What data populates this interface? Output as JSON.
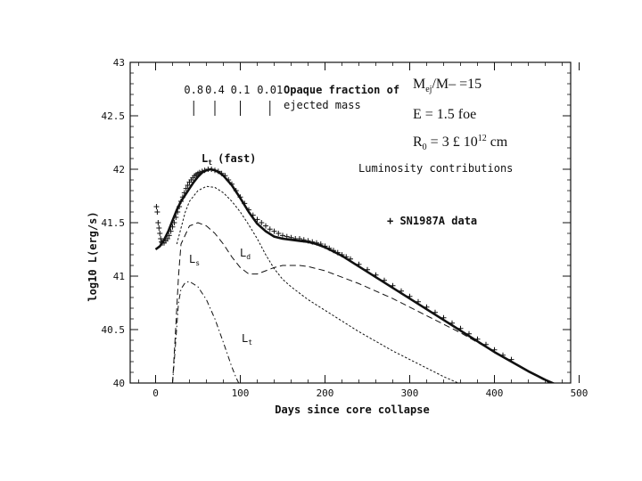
{
  "chart_data": {
    "type": "line",
    "title": "",
    "xlabel": "Days since core collapse",
    "ylabel": "log10 L(erg/s)",
    "xlim": [
      -30,
      490
    ],
    "ylim": [
      40,
      43
    ],
    "x_ticks": [
      0,
      100,
      200,
      300,
      400,
      500
    ],
    "y_ticks": [
      40,
      40.5,
      41,
      41.5,
      42,
      42.5,
      43
    ],
    "x_tick_labels": [
      "0",
      "100",
      "200",
      "300",
      "400",
      "500"
    ],
    "y_tick_labels": [
      "40",
      "40.5",
      "41",
      "41.5",
      "42",
      "42.5",
      "43"
    ],
    "grid": false,
    "legend_title": "Luminosity contributions",
    "parameters": {
      "mass_prefix": "M",
      "mass_sub": "ej",
      "mass_suffix": "/M– =15",
      "energy": "E = 1.5 foe",
      "radius_prefix": "R",
      "radius_sub": "0",
      "radius_mid": " = 3 £ 10",
      "radius_sup": "12",
      "radius_suffix": " cm"
    },
    "opaque_fraction": {
      "label_line1": "Opaque fraction of",
      "label_line2": "ejected mass",
      "values": [
        "0.8",
        "0.4",
        "0.1",
        "0.01"
      ],
      "days": [
        45,
        70,
        100,
        135
      ]
    },
    "series": [
      {
        "name": "Lt (fast)",
        "label_main": "L",
        "label_sub": "t",
        "label_suffix": "(fast)",
        "style": "solid-thick",
        "x": [
          0,
          5,
          10,
          15,
          20,
          25,
          30,
          35,
          40,
          45,
          50,
          55,
          60,
          65,
          70,
          75,
          80,
          90,
          100,
          110,
          120,
          130,
          140,
          150,
          160,
          170,
          180,
          190,
          200,
          210,
          220,
          240,
          260,
          280,
          300,
          320,
          340,
          360,
          380,
          400,
          420,
          440,
          460,
          480
        ],
        "y": [
          41.25,
          41.28,
          41.34,
          41.42,
          41.52,
          41.62,
          41.7,
          41.76,
          41.82,
          41.88,
          41.93,
          41.97,
          41.99,
          42.0,
          41.99,
          41.97,
          41.94,
          41.85,
          41.73,
          41.6,
          41.49,
          41.42,
          41.37,
          41.35,
          41.34,
          41.33,
          41.32,
          41.3,
          41.27,
          41.23,
          41.19,
          41.09,
          40.99,
          40.89,
          40.79,
          40.69,
          40.59,
          40.49,
          40.39,
          40.29,
          40.2,
          40.11,
          40.03,
          39.96
        ]
      },
      {
        "name": "Ls",
        "label_main": "L",
        "label_sub": "s",
        "style": "dashdot",
        "x": [
          20,
          23,
          27,
          30,
          35,
          40,
          50,
          60,
          70,
          80,
          90,
          95,
          100
        ],
        "y": [
          40.0,
          40.3,
          40.75,
          40.88,
          40.94,
          40.95,
          40.9,
          40.78,
          40.6,
          40.38,
          40.15,
          40.05,
          39.97
        ]
      },
      {
        "name": "Ld",
        "label_main": "L",
        "label_sub": "d",
        "style": "dashed",
        "x": [
          20,
          23,
          27,
          30,
          40,
          50,
          60,
          70,
          80,
          90,
          100,
          110,
          120,
          130,
          140,
          150,
          160,
          170,
          180,
          190,
          200,
          220,
          240,
          260,
          280,
          300,
          320,
          340,
          360,
          380,
          400,
          420,
          440,
          460,
          480
        ],
        "y": [
          40.0,
          40.4,
          41.0,
          41.3,
          41.47,
          41.5,
          41.47,
          41.4,
          41.3,
          41.18,
          41.08,
          41.02,
          41.02,
          41.05,
          41.08,
          41.1,
          41.1,
          41.1,
          41.09,
          41.07,
          41.05,
          40.99,
          40.93,
          40.86,
          40.79,
          40.71,
          40.63,
          40.55,
          40.47,
          40.38,
          40.29,
          40.2,
          40.11,
          40.02,
          39.95
        ]
      },
      {
        "name": "Lt",
        "label_main": "L",
        "label_sub": "t",
        "style": "dotted",
        "x": [
          25,
          30,
          35,
          40,
          50,
          60,
          70,
          80,
          90,
          100,
          110,
          120,
          130,
          140,
          150,
          160,
          170,
          180,
          190,
          200,
          220,
          240,
          260,
          280,
          300,
          320,
          340,
          360
        ],
        "y": [
          41.3,
          41.45,
          41.6,
          41.7,
          41.8,
          41.84,
          41.83,
          41.78,
          41.7,
          41.6,
          41.48,
          41.35,
          41.2,
          41.07,
          40.97,
          40.9,
          40.84,
          40.78,
          40.73,
          40.68,
          40.58,
          40.48,
          40.39,
          40.3,
          40.22,
          40.14,
          40.06,
          39.99
        ]
      },
      {
        "name": "SN1987A data",
        "label_main": "+ SN1987A data",
        "style": "marker-plus",
        "x": [
          1,
          2,
          3,
          4,
          5,
          6,
          7,
          8,
          10,
          12,
          14,
          16,
          18,
          20,
          22,
          24,
          26,
          28,
          30,
          32,
          34,
          36,
          38,
          40,
          42,
          44,
          46,
          48,
          50,
          52,
          55,
          58,
          62,
          66,
          70,
          74,
          78,
          82,
          86,
          90,
          95,
          100,
          105,
          110,
          115,
          120,
          125,
          130,
          135,
          140,
          145,
          150,
          155,
          160,
          165,
          170,
          175,
          180,
          185,
          190,
          195,
          200,
          205,
          210,
          215,
          220,
          225,
          230,
          240,
          250,
          260,
          270,
          280,
          290,
          300,
          310,
          320,
          330,
          340,
          350,
          360,
          370,
          380,
          390,
          400,
          410,
          420
        ],
        "y": [
          41.65,
          41.6,
          41.5,
          41.45,
          41.4,
          41.35,
          41.32,
          41.31,
          41.31,
          41.33,
          41.35,
          41.38,
          41.42,
          41.46,
          41.5,
          41.55,
          41.6,
          41.65,
          41.7,
          41.74,
          41.78,
          41.82,
          41.85,
          41.88,
          41.9,
          41.92,
          41.94,
          41.95,
          41.96,
          41.97,
          41.98,
          41.99,
          42.0,
          42.0,
          41.99,
          41.98,
          41.96,
          41.94,
          41.9,
          41.86,
          41.8,
          41.74,
          41.68,
          41.62,
          41.57,
          41.53,
          41.5,
          41.47,
          41.44,
          41.42,
          41.4,
          41.38,
          41.37,
          41.36,
          41.35,
          41.35,
          41.34,
          41.33,
          41.32,
          41.31,
          41.3,
          41.28,
          41.26,
          41.24,
          41.22,
          41.2,
          41.18,
          41.16,
          41.11,
          41.06,
          41.01,
          40.96,
          40.91,
          40.86,
          40.81,
          40.76,
          40.71,
          40.66,
          40.61,
          40.56,
          40.51,
          40.46,
          40.41,
          40.36,
          40.31,
          40.26,
          40.22
        ]
      }
    ]
  }
}
